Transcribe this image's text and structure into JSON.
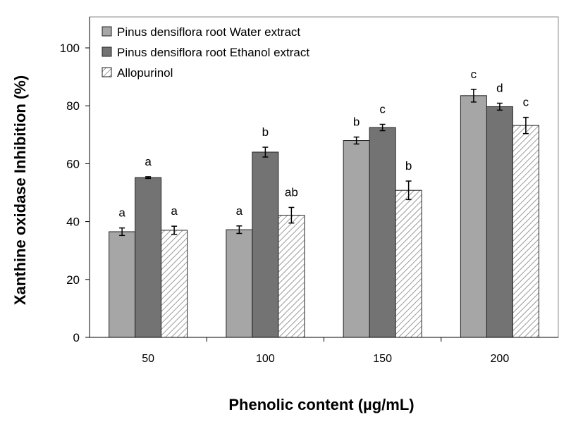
{
  "chart_data": {
    "type": "bar",
    "title": "",
    "xlabel": "Phenolic content (µg/mL)",
    "ylabel": "Xanthine  oxidase Inhibition  (%)",
    "ylim": [
      0,
      100
    ],
    "yticks": [
      0,
      20,
      40,
      60,
      80,
      100
    ],
    "categories": [
      "50",
      "100",
      "150",
      "200"
    ],
    "legend_position": "top-left",
    "grid": false,
    "series": [
      {
        "name": "Pinus densiflora root Water extract",
        "color": "#a6a6a6",
        "pattern": "solid",
        "values": [
          36.5,
          37.2,
          68.0,
          83.5
        ],
        "errors": [
          1.3,
          1.3,
          1.2,
          2.2
        ],
        "labels": [
          "a",
          "a",
          "b",
          "c"
        ]
      },
      {
        "name": "Pinus densiflora root Ethanol extract",
        "color": "#737373",
        "pattern": "solid",
        "values": [
          55.2,
          64.0,
          72.5,
          79.7
        ],
        "errors": [
          0.3,
          1.7,
          1.1,
          1.2
        ],
        "labels": [
          "a",
          "b",
          "c",
          "d"
        ]
      },
      {
        "name": "Allopurinol",
        "color": "#ffffff",
        "pattern": "hatch",
        "values": [
          37.0,
          42.2,
          50.8,
          73.2
        ],
        "errors": [
          1.4,
          2.7,
          3.2,
          2.8
        ],
        "labels": [
          "a",
          "ab",
          "b",
          "c"
        ]
      }
    ]
  }
}
